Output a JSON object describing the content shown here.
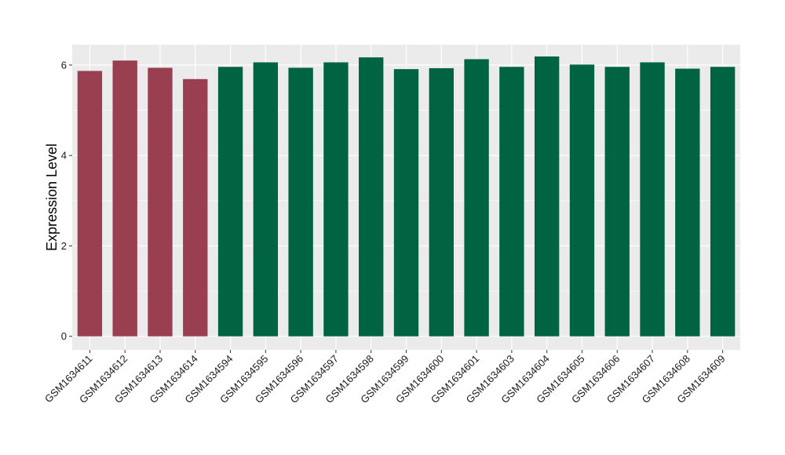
{
  "chart_data": {
    "type": "bar",
    "title": "",
    "xlabel": "",
    "ylabel": "Expression Level",
    "ylim": [
      -0.3,
      6.45
    ],
    "yticks": [
      0,
      2,
      4,
      6
    ],
    "grid": true,
    "legend": "none",
    "categories": [
      "GSM1634611",
      "GSM1634612",
      "GSM1634613",
      "GSM1634614",
      "GSM1634594",
      "GSM1634595",
      "GSM1634596",
      "GSM1634597",
      "GSM1634598",
      "GSM1634599",
      "GSM1634600",
      "GSM1634601",
      "GSM1634603",
      "GSM1634604",
      "GSM1634605",
      "GSM1634606",
      "GSM1634607",
      "GSM1634608",
      "GSM1634609"
    ],
    "values": [
      5.87,
      6.1,
      5.94,
      5.69,
      5.96,
      6.06,
      5.94,
      6.06,
      6.17,
      5.91,
      5.93,
      6.13,
      5.96,
      6.19,
      6.01,
      5.96,
      6.06,
      5.92,
      5.96
    ],
    "bar_groups": [
      0,
      0,
      0,
      0,
      1,
      1,
      1,
      1,
      1,
      1,
      1,
      1,
      1,
      1,
      1,
      1,
      1,
      1,
      1
    ],
    "colors": {
      "group_0": "#9a3f50",
      "group_1": "#006443",
      "panel_bg": "#ebebeb",
      "grid": "#ffffff"
    }
  }
}
